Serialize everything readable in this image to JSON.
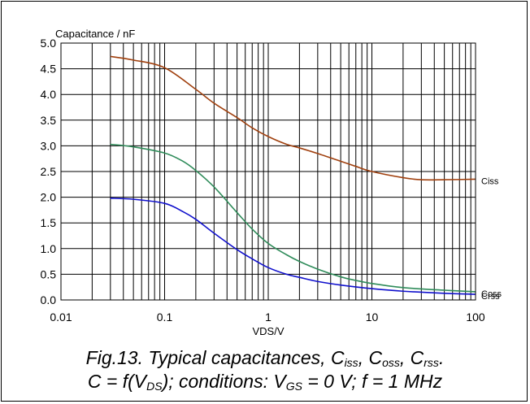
{
  "chart_data": {
    "type": "line",
    "xscale": "log",
    "xlim": [
      0.01,
      100
    ],
    "ylim": [
      0,
      5
    ],
    "ylabel": "Capacitance / nF",
    "xlabel": "VDS/V",
    "grid": true,
    "x_ticks": [
      "0.01",
      "0.1",
      "1",
      "10",
      "100"
    ],
    "y_ticks": [
      "0.0",
      "0.5",
      "1.0",
      "1.5",
      "2.0",
      "2.5",
      "3.0",
      "3.5",
      "4.0",
      "4.5",
      "5.0"
    ],
    "series": [
      {
        "name": "Ciss",
        "color": "#a0400e",
        "points": [
          [
            0.03,
            4.74
          ],
          [
            0.05,
            4.67
          ],
          [
            0.1,
            4.52
          ],
          [
            0.2,
            4.1
          ],
          [
            0.3,
            3.83
          ],
          [
            0.5,
            3.55
          ],
          [
            0.7,
            3.35
          ],
          [
            1,
            3.18
          ],
          [
            1.5,
            3.03
          ],
          [
            2,
            2.96
          ],
          [
            3,
            2.85
          ],
          [
            5,
            2.7
          ],
          [
            7,
            2.6
          ],
          [
            10,
            2.5
          ],
          [
            20,
            2.38
          ],
          [
            30,
            2.34
          ],
          [
            50,
            2.34
          ],
          [
            100,
            2.35
          ]
        ]
      },
      {
        "name": "Coss",
        "color": "#2f8c5a",
        "points": [
          [
            0.03,
            3.03
          ],
          [
            0.05,
            2.98
          ],
          [
            0.1,
            2.86
          ],
          [
            0.15,
            2.7
          ],
          [
            0.2,
            2.52
          ],
          [
            0.3,
            2.2
          ],
          [
            0.5,
            1.7
          ],
          [
            0.7,
            1.38
          ],
          [
            1,
            1.1
          ],
          [
            1.5,
            0.88
          ],
          [
            2,
            0.75
          ],
          [
            3,
            0.6
          ],
          [
            5,
            0.45
          ],
          [
            7,
            0.38
          ],
          [
            10,
            0.32
          ],
          [
            20,
            0.24
          ],
          [
            50,
            0.19
          ],
          [
            100,
            0.16
          ]
        ]
      },
      {
        "name": "Crss",
        "color": "#1010cc",
        "points": [
          [
            0.03,
            1.98
          ],
          [
            0.05,
            1.96
          ],
          [
            0.1,
            1.88
          ],
          [
            0.15,
            1.72
          ],
          [
            0.2,
            1.57
          ],
          [
            0.3,
            1.3
          ],
          [
            0.5,
            0.98
          ],
          [
            0.7,
            0.8
          ],
          [
            1,
            0.63
          ],
          [
            1.5,
            0.5
          ],
          [
            2,
            0.44
          ],
          [
            3,
            0.36
          ],
          [
            5,
            0.29
          ],
          [
            10,
            0.22
          ],
          [
            20,
            0.17
          ],
          [
            50,
            0.13
          ],
          [
            100,
            0.11
          ]
        ]
      }
    ]
  },
  "caption": {
    "line1_a": "Fig.13.   Typical capacitances, C",
    "line1_s1": "iss",
    "line1_b": ", C",
    "line1_s2": "oss",
    "line1_c": ", C",
    "line1_s3": "rss",
    "line1_d": ".",
    "line2_a": "C = f(V",
    "line2_s1": "DS",
    "line2_b": "); conditions: V",
    "line2_s2": "GS",
    "line2_c": " = 0 V; f = 1 MHz"
  }
}
